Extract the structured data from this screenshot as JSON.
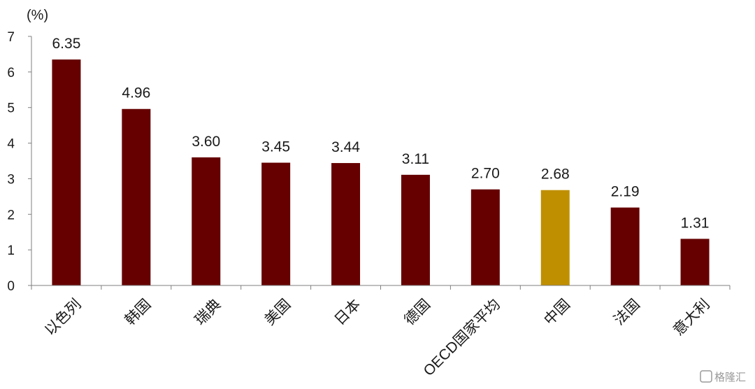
{
  "chart_data": {
    "type": "bar",
    "title": "",
    "xlabel": "",
    "ylabel": "(%)",
    "ylim": [
      0,
      7
    ],
    "yticks": [
      0,
      1,
      2,
      3,
      4,
      5,
      6,
      7
    ],
    "grid": false,
    "categories": [
      "以色列",
      "韩国",
      "瑞典",
      "美国",
      "日本",
      "德国",
      "OECD国家平均",
      "中国",
      "法国",
      "意大利"
    ],
    "values": [
      6.35,
      4.96,
      3.6,
      3.45,
      3.44,
      3.11,
      2.7,
      2.68,
      2.19,
      1.31
    ],
    "value_labels": [
      "6.35",
      "4.96",
      "3.60",
      "3.45",
      "3.44",
      "3.11",
      "2.70",
      "2.68",
      "2.19",
      "1.31"
    ],
    "colors": {
      "default": "#660000",
      "highlight": "#c08f00",
      "highlight_category": "中国"
    }
  },
  "watermark": {
    "text": "格隆汇"
  }
}
